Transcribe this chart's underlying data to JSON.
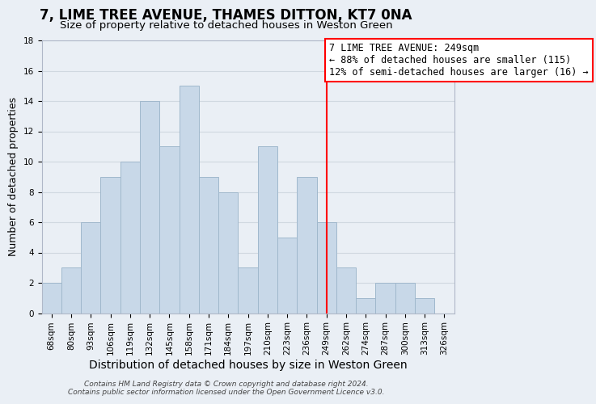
{
  "title": "7, LIME TREE AVENUE, THAMES DITTON, KT7 0NA",
  "subtitle": "Size of property relative to detached houses in Weston Green",
  "xlabel": "Distribution of detached houses by size in Weston Green",
  "ylabel": "Number of detached properties",
  "footer_line1": "Contains HM Land Registry data © Crown copyright and database right 2024.",
  "footer_line2": "Contains public sector information licensed under the Open Government Licence v3.0.",
  "bar_labels": [
    "68sqm",
    "80sqm",
    "93sqm",
    "106sqm",
    "119sqm",
    "132sqm",
    "145sqm",
    "158sqm",
    "171sqm",
    "184sqm",
    "197sqm",
    "210sqm",
    "223sqm",
    "236sqm",
    "249sqm",
    "262sqm",
    "274sqm",
    "287sqm",
    "300sqm",
    "313sqm",
    "326sqm"
  ],
  "bar_values": [
    2,
    3,
    6,
    9,
    10,
    14,
    11,
    15,
    9,
    8,
    3,
    11,
    5,
    9,
    6,
    3,
    1,
    2,
    2,
    1,
    0
  ],
  "bar_color": "#c8d8e8",
  "bar_edge_color": "#a0b8cc",
  "grid_color": "#d0d8e0",
  "background_color": "#eaeff5",
  "vline_x_index": 14,
  "vline_color": "red",
  "annotation_line1": "7 LIME TREE AVENUE: 249sqm",
  "annotation_line2": "← 88% of detached houses are smaller (115)",
  "annotation_line3": "12% of semi-detached houses are larger (16) →",
  "ylim": [
    0,
    18
  ],
  "yticks": [
    0,
    2,
    4,
    6,
    8,
    10,
    12,
    14,
    16,
    18
  ],
  "title_fontsize": 12,
  "subtitle_fontsize": 9.5,
  "xlabel_fontsize": 10,
  "ylabel_fontsize": 9,
  "tick_fontsize": 7.5,
  "annotation_fontsize": 8.5,
  "footer_fontsize": 6.5
}
